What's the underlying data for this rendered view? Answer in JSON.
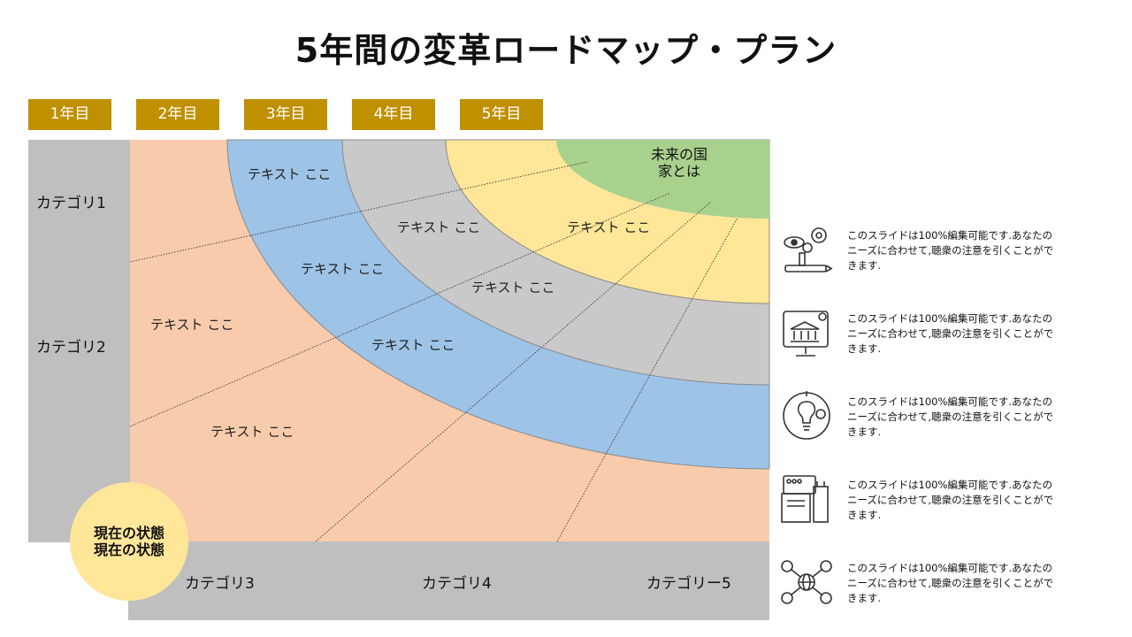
{
  "title": "5年間の変革ロードマップ・プラン",
  "years": [
    "1年目",
    "2年目",
    "3年目",
    "4年目",
    "5年目"
  ],
  "categories": {
    "cat1": "カテゴリ1",
    "cat2": "カテゴリ2",
    "cat3": "カテゴリ3",
    "cat4": "カテゴリ4",
    "cat5": "カテゴリー5"
  },
  "rings": {
    "outer_left_1": "テキスト ここ",
    "outer_left_2": "テキスト ここ",
    "blue_1": "テキスト ここ",
    "blue_2": "テキスト ここ",
    "blue_3": "テキスト ここ",
    "gray_1": "テキスト ここ",
    "gray_2": "テキスト ここ",
    "yellow_1": "テキスト ここ"
  },
  "future": {
    "line1": "未来の国",
    "line2": "家とは"
  },
  "current": {
    "line1": "現在の状態",
    "line2": "現在の状態"
  },
  "colors": {
    "year_header": "#BF9000",
    "category_bg": "#BFBFBF",
    "ring_peach": "#F8CBAD",
    "ring_blue": "#9DC3E6",
    "ring_gray": "#C9C9C9",
    "ring_yellow": "#FFE699",
    "ring_green": "#A9D18E",
    "current_circle": "#FFE699"
  },
  "side_items": [
    {
      "icon": "vision-pencil-gears-icon",
      "line1": "このスライドは100%編集可能です.あなたの",
      "line2": "ニーズに合わせて,聴衆の注意を引くことがで",
      "line3": "きます."
    },
    {
      "icon": "monitor-government-icon",
      "line1": "このスライドは100%編集可能です.あなたの",
      "line2": "ニーズに合わせて,聴衆の注意を引くことがで",
      "line3": "きます."
    },
    {
      "icon": "lightbulb-gears-icon",
      "line1": "このスライドは100%編集可能です.あなたの",
      "line2": "ニーズに合わせて,聴衆の注意を引くことがで",
      "line3": "きます."
    },
    {
      "icon": "city-buildings-icon",
      "line1": "このスライドは100%編集可能です.あなたの",
      "line2": "ニーズに合わせて,聴衆の注意を引くことがで",
      "line3": "きます."
    },
    {
      "icon": "globe-network-icon",
      "line1": "このスライドは100%編集可能です.あなたの",
      "line2": "ニーズに合わせて,聴衆の注意を引くことがで",
      "line3": "きます."
    }
  ]
}
